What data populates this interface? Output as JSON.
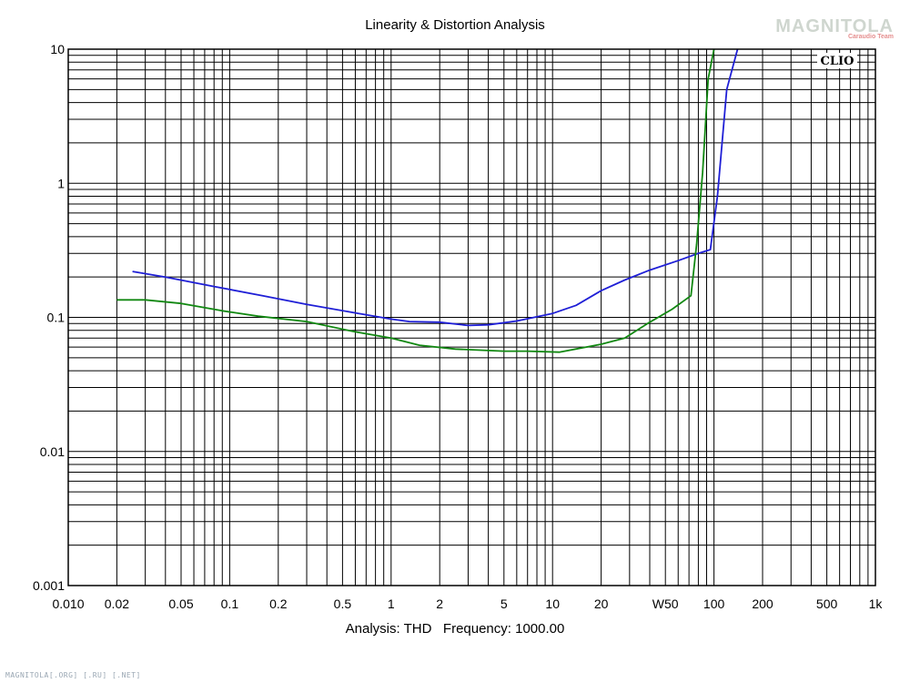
{
  "watermark": {
    "brand": "MAGNITOLA",
    "sub": "Caraudio Team"
  },
  "footer": "MAGNITOLA[.ORG] [.RU] [.NET]",
  "logo": "CLIO",
  "chart_data": {
    "type": "line",
    "title": "Linearity & Distortion Analysis",
    "subtitle": "Analysis: THD   Frequency: 1000.00",
    "x_scale": "log",
    "y_scale": "log",
    "xlim": [
      0.01,
      1000
    ],
    "ylim": [
      0.001,
      10
    ],
    "x_ticks": [
      {
        "v": 0.01,
        "label": "0.010"
      },
      {
        "v": 0.02,
        "label": "0.02"
      },
      {
        "v": 0.05,
        "label": "0.05"
      },
      {
        "v": 0.1,
        "label": "0.1"
      },
      {
        "v": 0.2,
        "label": "0.2"
      },
      {
        "v": 0.5,
        "label": "0.5"
      },
      {
        "v": 1,
        "label": "1"
      },
      {
        "v": 2,
        "label": "2"
      },
      {
        "v": 5,
        "label": "5"
      },
      {
        "v": 10,
        "label": "10"
      },
      {
        "v": 20,
        "label": "20"
      },
      {
        "v": 50,
        "label": "W50"
      },
      {
        "v": 100,
        "label": "100"
      },
      {
        "v": 200,
        "label": "200"
      },
      {
        "v": 500,
        "label": "500"
      },
      {
        "v": 1000,
        "label": "1k"
      }
    ],
    "y_ticks": [
      {
        "v": 10,
        "label": "10"
      },
      {
        "v": 1,
        "label": "1"
      },
      {
        "v": 0.1,
        "label": "0.1"
      },
      {
        "v": 0.01,
        "label": "0.01"
      },
      {
        "v": 0.001,
        "label": "0.001"
      }
    ],
    "grid": true,
    "series": [
      {
        "color": "#1f1fd6",
        "points": [
          [
            0.025,
            0.22
          ],
          [
            0.04,
            0.2
          ],
          [
            0.08,
            0.17
          ],
          [
            0.16,
            0.145
          ],
          [
            0.3,
            0.125
          ],
          [
            0.6,
            0.108
          ],
          [
            1,
            0.097
          ],
          [
            1.3,
            0.093
          ],
          [
            2,
            0.092
          ],
          [
            3,
            0.087
          ],
          [
            4,
            0.088
          ],
          [
            6,
            0.094
          ],
          [
            10,
            0.107
          ],
          [
            14,
            0.123
          ],
          [
            20,
            0.158
          ],
          [
            28,
            0.19
          ],
          [
            40,
            0.225
          ],
          [
            60,
            0.265
          ],
          [
            80,
            0.3
          ],
          [
            95,
            0.32
          ],
          [
            105,
            0.8
          ],
          [
            120,
            5
          ],
          [
            140,
            10
          ]
        ]
      },
      {
        "color": "#118811",
        "points": [
          [
            0.02,
            0.135
          ],
          [
            0.03,
            0.135
          ],
          [
            0.05,
            0.127
          ],
          [
            0.09,
            0.112
          ],
          [
            0.15,
            0.102
          ],
          [
            0.3,
            0.093
          ],
          [
            0.6,
            0.078
          ],
          [
            1,
            0.07
          ],
          [
            1.5,
            0.062
          ],
          [
            2.5,
            0.058
          ],
          [
            5,
            0.056
          ],
          [
            7,
            0.056
          ],
          [
            11,
            0.055
          ],
          [
            15,
            0.059
          ],
          [
            20,
            0.063
          ],
          [
            28,
            0.07
          ],
          [
            40,
            0.092
          ],
          [
            55,
            0.115
          ],
          [
            72,
            0.145
          ],
          [
            78,
            0.35
          ],
          [
            85,
            1.2
          ],
          [
            92,
            6
          ],
          [
            100,
            10
          ]
        ]
      }
    ]
  }
}
